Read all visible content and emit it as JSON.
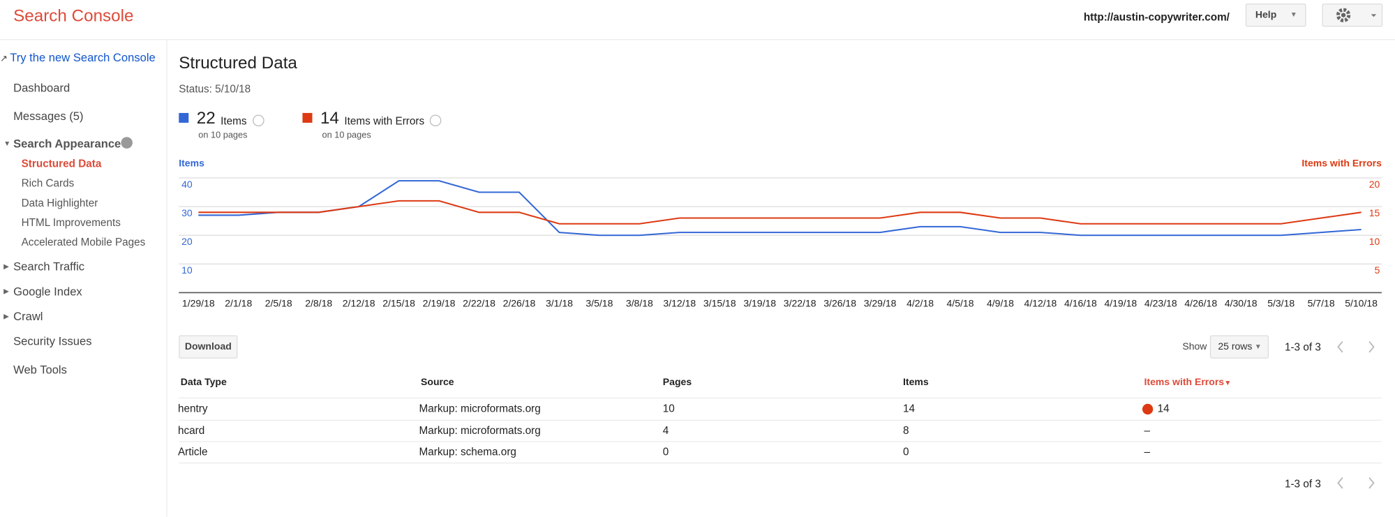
{
  "header": {
    "product": "Search Console",
    "site": "http://austin-copywriter.com/",
    "help": "Help"
  },
  "sidebar": {
    "new_console": "Try the new Search Console",
    "items": [
      "Dashboard",
      "Messages (5)",
      "Search Appearance",
      "Structured Data",
      "Rich Cards",
      "Data Highlighter",
      "HTML Improvements",
      "Accelerated Mobile Pages",
      "Search Traffic",
      "Google Index",
      "Crawl",
      "Security Issues",
      "Web Tools"
    ]
  },
  "page": {
    "title": "Structured Data",
    "status": "Status: 5/10/18",
    "summary": [
      {
        "count": 22,
        "pages": "on 10 pages"
      },
      {
        "count": 14,
        "pages": "on 10 pages"
      }
    ]
  },
  "chart_data": {
    "type": "line",
    "ylabel": "Items",
    "y2label": "Items with Errors",
    "categories": [
      "1/29/18",
      "2/1/18",
      "2/5/18",
      "2/8/18",
      "2/12/18",
      "2/15/18",
      "2/19/18",
      "2/22/18",
      "2/26/18",
      "3/1/18",
      "3/5/18",
      "3/8/18",
      "3/12/18",
      "3/15/18",
      "3/19/18",
      "3/22/18",
      "3/26/18",
      "3/29/18",
      "4/2/18",
      "4/5/18",
      "4/9/18",
      "4/12/18",
      "4/16/18",
      "4/19/18",
      "4/23/18",
      "4/26/18",
      "4/30/18",
      "5/3/18",
      "5/7/18",
      "5/10/18"
    ],
    "series": [
      {
        "name": "Items",
        "color": "#3367d6",
        "values": [
          27,
          27,
          28,
          28,
          30,
          39,
          39,
          35,
          35,
          21,
          20,
          20,
          21,
          21,
          21,
          21,
          21,
          21,
          23,
          23,
          21,
          21,
          20,
          20,
          20,
          20,
          20,
          20,
          21,
          22
        ]
      },
      {
        "name": "Items with Errors",
        "color": "#dd3a13",
        "axis": "y2",
        "values": [
          14,
          14,
          14,
          14,
          15,
          16,
          16,
          14,
          14,
          12,
          12,
          12,
          13,
          13,
          13,
          13,
          13,
          13,
          14,
          14,
          13,
          13,
          12,
          12,
          12,
          12,
          12,
          12,
          13,
          14
        ]
      }
    ],
    "ylim": [
      0,
      40
    ],
    "yticks": [
      10,
      20,
      30,
      40
    ],
    "y2lim": [
      0,
      20
    ],
    "y2ticks": [
      5,
      10,
      15,
      20
    ],
    "grid": true
  },
  "controls": {
    "download": "Download",
    "show": "Show",
    "rows": "25 rows",
    "range_top": "1-3 of 3",
    "range_bottom": "1-3 of 3"
  },
  "table": {
    "columns": [
      "Data Type",
      "Source",
      "Pages",
      "Items",
      "Items with Errors"
    ],
    "rows": [
      [
        "hentry",
        "Markup: microformats.org",
        10,
        14,
        14
      ],
      [
        "hcard",
        "Markup: microformats.org",
        4,
        8,
        "–"
      ],
      [
        "Article",
        "Markup: schema.org",
        0,
        0,
        "–"
      ]
    ]
  }
}
